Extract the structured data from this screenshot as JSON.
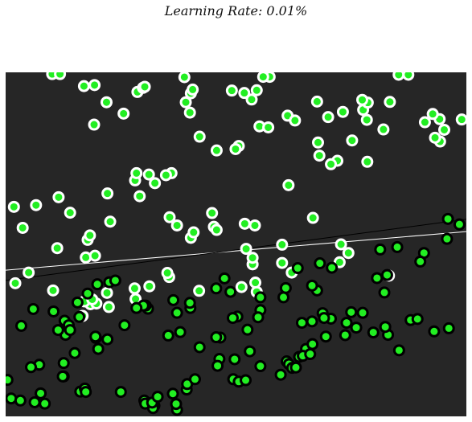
{
  "chart_data": {
    "type": "scatter",
    "title": "Learning Rate: 0.01%",
    "xlabel": "",
    "ylabel": "",
    "xlim": [
      0,
      1
    ],
    "ylim": [
      0,
      1
    ],
    "grid": false,
    "background_color": "#262626",
    "point_fill": "#22ee22",
    "series": [
      {
        "class": "white-ring",
        "ring_color": "#ffffff",
        "x": [
          0.101,
          0.118,
          0.17,
          0.193,
          0.286,
          0.391,
          0.4,
          0.491,
          0.573,
          0.559,
          0.388,
          0.298,
          0.302,
          0.256,
          0.192,
          0.219,
          0.402,
          0.406,
          0.534,
          0.518,
          0.545,
          0.853,
          0.874,
          0.676,
          0.612,
          0.7,
          0.732,
          0.784,
          0.752,
          0.82,
          0.91,
          0.952,
          0.99,
          0.943,
          0.932,
          0.785,
          0.678,
          0.72,
          0.681,
          0.706,
          0.614,
          0.36,
          0.348,
          0.281,
          0.284,
          0.311,
          0.324,
          0.221,
          0.291,
          0.458,
          0.506,
          0.499,
          0.421,
          0.551,
          0.57,
          0.628,
          0.776,
          0.786,
          0.774,
          0.834,
          0.942,
          0.927,
          0.018,
          0.066,
          0.037,
          0.115,
          0.14,
          0.178,
          0.183,
          0.227,
          0.112,
          0.174,
          0.194,
          0.402,
          0.408,
          0.372,
          0.356,
          0.452,
          0.458,
          0.448,
          0.519,
          0.541,
          0.522,
          0.536,
          0.667,
          0.6,
          0.536,
          0.6,
          0.621,
          0.744,
          0.728,
          0.832,
          0.725,
          0.545,
          0.512,
          0.542,
          0.42,
          0.355,
          0.351,
          0.312,
          0.28,
          0.22,
          0.184,
          0.167,
          0.197,
          0.103,
          0.05,
          0.021,
          0.171,
          0.188,
          0.224,
          0.282
        ],
        "y": [
          0.995,
          0.995,
          0.96,
          0.963,
          0.943,
          0.913,
          0.883,
          0.947,
          0.987,
          0.987,
          0.986,
          0.955,
          0.958,
          0.88,
          0.848,
          0.913,
          0.939,
          0.95,
          0.921,
          0.94,
          0.948,
          0.993,
          0.993,
          0.915,
          0.874,
          0.87,
          0.885,
          0.862,
          0.802,
          0.834,
          0.855,
          0.833,
          0.863,
          0.799,
          0.81,
          0.74,
          0.796,
          0.743,
          0.758,
          0.733,
          0.672,
          0.707,
          0.701,
          0.686,
          0.707,
          0.703,
          0.678,
          0.648,
          0.64,
          0.773,
          0.786,
          0.777,
          0.813,
          0.843,
          0.84,
          0.86,
          0.891,
          0.912,
          0.92,
          0.914,
          0.864,
          0.879,
          0.609,
          0.614,
          0.548,
          0.637,
          0.592,
          0.513,
          0.526,
          0.566,
          0.489,
          0.462,
          0.467,
          0.519,
          0.535,
          0.555,
          0.579,
          0.551,
          0.542,
          0.591,
          0.56,
          0.555,
          0.487,
          0.442,
          0.577,
          0.499,
          0.461,
          0.446,
          0.418,
          0.475,
          0.5,
          0.409,
          0.448,
          0.362,
          0.376,
          0.389,
          0.365,
          0.405,
          0.417,
          0.378,
          0.372,
          0.359,
          0.326,
          0.292,
          0.328,
          0.366,
          0.418,
          0.387,
          0.334,
          0.34,
          0.318,
          0.341
        ]
      },
      {
        "class": "black-ring",
        "ring_color": "#000000",
        "x": [
          0.199,
          0.225,
          0.238,
          0.178,
          0.156,
          0.104,
          0.128,
          0.137,
          0.221,
          0.353,
          0.421,
          0.464,
          0.53,
          0.553,
          0.61,
          0.615,
          0.652,
          0.666,
          0.74,
          0.83,
          0.854,
          0.962,
          0.93,
          0.879,
          0.894,
          0.822,
          0.828,
          0.806,
          0.813,
          0.85,
          0.908,
          0.958,
          0.985,
          0.96,
          0.9,
          0.708,
          0.682,
          0.634,
          0.676,
          0.665,
          0.608,
          0.603,
          0.553,
          0.488,
          0.475,
          0.457,
          0.401,
          0.4,
          0.364,
          0.309,
          0.304,
          0.258,
          0.196,
          0.195,
          0.13,
          0.114,
          0.201,
          0.15,
          0.126,
          0.073,
          0.055,
          0.126,
          0.124,
          0.076,
          0.004,
          0.012,
          0.032,
          0.063,
          0.085,
          0.162,
          0.172,
          0.174,
          0.25,
          0.301,
          0.303,
          0.323,
          0.32,
          0.372,
          0.37,
          0.318,
          0.33,
          0.363,
          0.393,
          0.394,
          0.411,
          0.46,
          0.497,
          0.494,
          0.506,
          0.521,
          0.597,
          0.622,
          0.63,
          0.637,
          0.645,
          0.661,
          0.695,
          0.737,
          0.761,
          0.798,
          0.824,
          0.775,
          0.75,
          0.706,
          0.688,
          0.691,
          0.665,
          0.643,
          0.553,
          0.548,
          0.503,
          0.493,
          0.525,
          0.466,
          0.457,
          0.379,
          0.372,
          0.299,
          0.284,
          0.16,
          0.14,
          0.034,
          0.06
        ],
        "y": [
          0.384,
          0.39,
          0.395,
          0.357,
          0.331,
          0.305,
          0.278,
          0.265,
          0.224,
          0.235,
          0.201,
          0.167,
          0.189,
          0.146,
          0.16,
          0.152,
          0.196,
          0.21,
          0.272,
          0.237,
          0.192,
          0.256,
          0.247,
          0.28,
          0.283,
          0.36,
          0.411,
          0.402,
          0.485,
          0.492,
          0.475,
          0.516,
          0.558,
          0.574,
          0.45,
          0.432,
          0.445,
          0.431,
          0.366,
          0.38,
          0.373,
          0.346,
          0.346,
          0.362,
          0.401,
          0.372,
          0.315,
          0.33,
          0.338,
          0.313,
          0.322,
          0.265,
          0.228,
          0.232,
          0.237,
          0.251,
          0.196,
          0.184,
          0.155,
          0.15,
          0.143,
          0.116,
          0.116,
          0.067,
          0.106,
          0.052,
          0.046,
          0.041,
          0.037,
          0.072,
          0.081,
          0.071,
          0.071,
          0.046,
          0.037,
          0.031,
          0.024,
          0.019,
          0.036,
          0.04,
          0.057,
          0.066,
          0.078,
          0.094,
          0.108,
          0.147,
          0.166,
          0.108,
          0.101,
          0.105,
          0.121,
          0.141,
          0.142,
          0.173,
          0.176,
          0.181,
          0.232,
          0.236,
          0.258,
          0.244,
          0.26,
          0.301,
          0.303,
          0.284,
          0.3,
          0.286,
          0.276,
          0.272,
          0.309,
          0.288,
          0.29,
          0.286,
          0.252,
          0.229,
          0.23,
          0.245,
          0.301,
          0.322,
          0.315,
          0.289,
          0.251,
          0.263,
          0.312
        ]
      }
    ],
    "lines": [
      {
        "name": "",
        "color": "#ffffff",
        "x": [
          0,
          1
        ],
        "y": [
          0.425,
          0.537
        ]
      },
      {
        "name": "",
        "color": "#000000",
        "x": [
          0,
          1
        ],
        "y": [
          0.395,
          0.573
        ]
      }
    ]
  }
}
